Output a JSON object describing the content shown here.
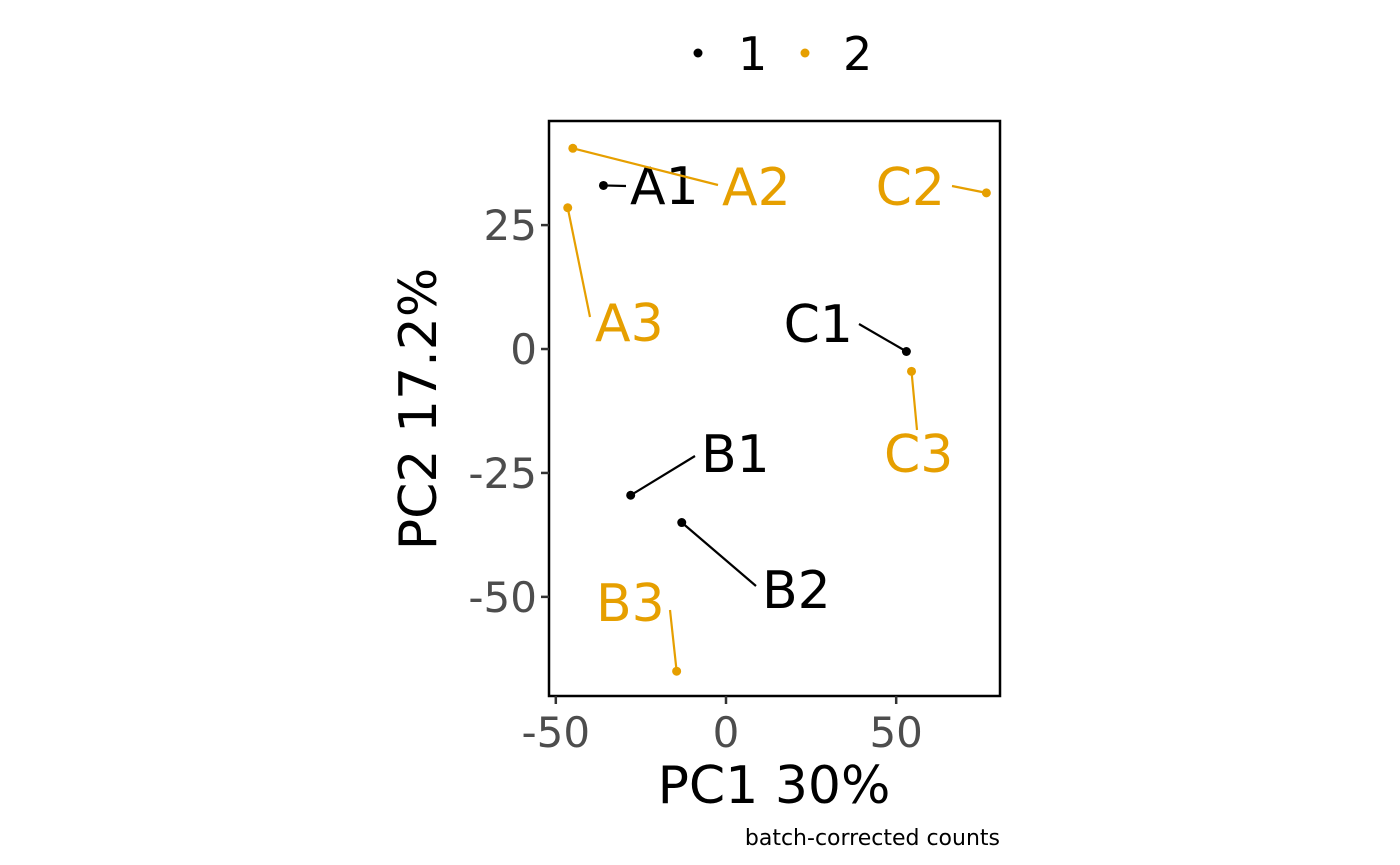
{
  "chart_data": {
    "type": "scatter",
    "xlabel": "PC1 30%",
    "ylabel": "PC2 17.2%",
    "caption": "batch-corrected counts",
    "xlim": [
      -52,
      80.5
    ],
    "ylim": [
      -70,
      46
    ],
    "xticks": [
      -50,
      0,
      50
    ],
    "yticks": [
      25,
      0,
      -25,
      -50
    ],
    "grid": false,
    "legend_position": "top",
    "series": [
      {
        "name": "1",
        "color": "#000000",
        "points": [
          {
            "label": "A1",
            "x": -36,
            "y": 33
          },
          {
            "label": "B1",
            "x": -28,
            "y": -29.5
          },
          {
            "label": "B2",
            "x": -13,
            "y": -35
          },
          {
            "label": "C1",
            "x": 53,
            "y": -0.5
          }
        ]
      },
      {
        "name": "2",
        "color": "#E69F00",
        "points": [
          {
            "label": "A2",
            "x": -45,
            "y": 40.5
          },
          {
            "label": "A3",
            "x": -46.5,
            "y": 28.5
          },
          {
            "label": "B3",
            "x": -14.5,
            "y": -65
          },
          {
            "label": "C2",
            "x": 76.5,
            "y": 31.5
          },
          {
            "label": "C3",
            "x": 54.5,
            "y": -4.5
          }
        ]
      }
    ]
  }
}
